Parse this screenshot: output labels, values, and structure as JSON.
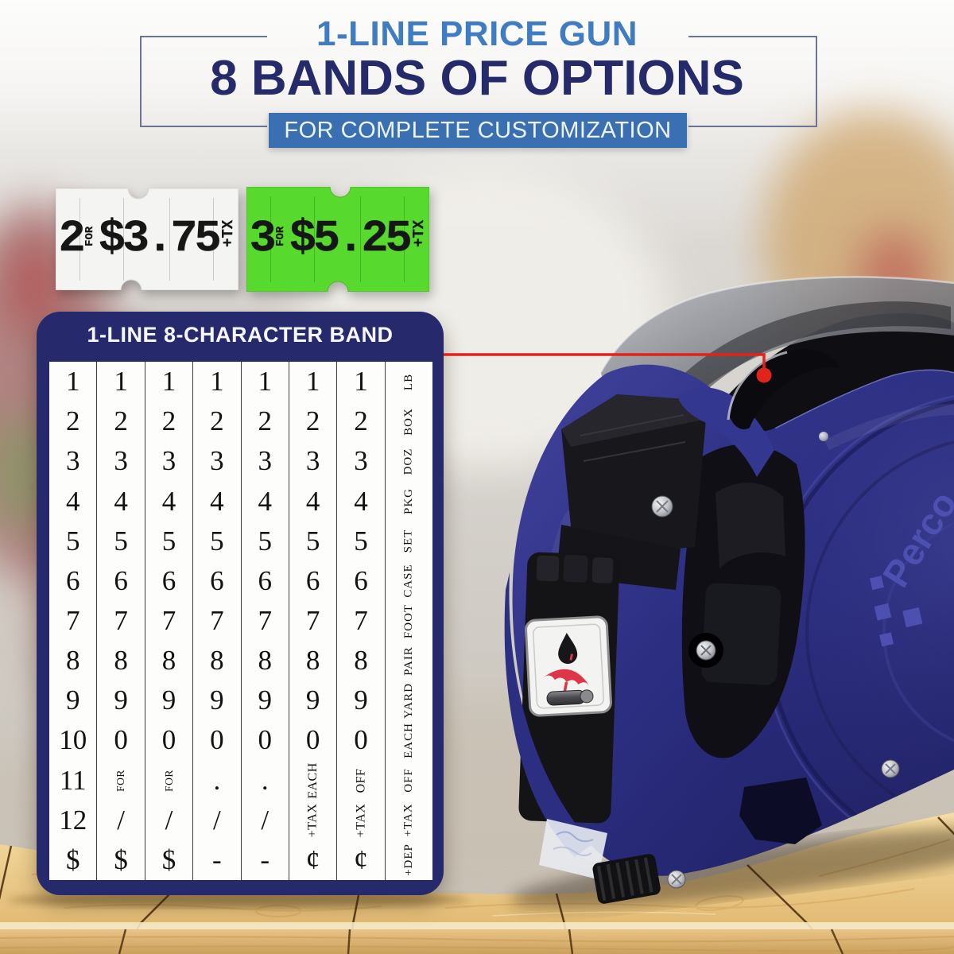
{
  "header": {
    "eyebrow": "1-LINE PRICE GUN",
    "title": "8 BANDS OF OPTIONS",
    "banner": "FOR COMPLETE CUSTOMIZATION"
  },
  "labels": [
    {
      "name": "white",
      "qty": "2",
      "for_text": "FOR",
      "price": "$3.75",
      "tax_text": "+TX",
      "bg": "#f4f4f2"
    },
    {
      "name": "green",
      "qty": "3",
      "for_text": "FOR",
      "price": "$5.25",
      "tax_text": "+TX",
      "bg": "#57da2d"
    }
  ],
  "band": {
    "title": "1-LINE 8-CHARACTER BAND",
    "columns": [
      {
        "cells": [
          "1",
          "2",
          "3",
          "4",
          "5",
          "6",
          "7",
          "8",
          "9",
          "10",
          "11",
          "12",
          "$"
        ],
        "rotated": []
      },
      {
        "cells": [
          "1",
          "2",
          "3",
          "4",
          "5",
          "6",
          "7",
          "8",
          "9",
          "0",
          "FOR",
          "/",
          "$"
        ],
        "rotated": [
          10
        ]
      },
      {
        "cells": [
          "1",
          "2",
          "3",
          "4",
          "5",
          "6",
          "7",
          "8",
          "9",
          "0",
          "FOR",
          "/",
          "$"
        ],
        "rotated": [
          10
        ]
      },
      {
        "cells": [
          "1",
          "2",
          "3",
          "4",
          "5",
          "6",
          "7",
          "8",
          "9",
          "0",
          ".",
          "/",
          "-"
        ],
        "rotated": []
      },
      {
        "cells": [
          "1",
          "2",
          "3",
          "4",
          "5",
          "6",
          "7",
          "8",
          "9",
          "0",
          ".",
          "/",
          "-"
        ],
        "rotated": []
      },
      {
        "cells": [
          "1",
          "2",
          "3",
          "4",
          "5",
          "6",
          "7",
          "8",
          "9",
          "0",
          "EACH",
          "+TAX",
          "¢"
        ],
        "rotated": [
          10,
          11
        ]
      },
      {
        "cells": [
          "1",
          "2",
          "3",
          "4",
          "5",
          "6",
          "7",
          "8",
          "9",
          "0",
          "OFF",
          "+TAX",
          "¢"
        ],
        "rotated": [
          10,
          11
        ]
      },
      {
        "cells": [
          "LB",
          "BOX",
          "DOZ",
          "PKG",
          "SET",
          "CASE",
          "FOOT",
          "PAIR",
          "YARD",
          "EACH",
          "OFF",
          "+TAX",
          "+DEP"
        ],
        "rotated": [
          0,
          1,
          2,
          3,
          4,
          5,
          6,
          7,
          8,
          9,
          10,
          11,
          12
        ]
      }
    ]
  },
  "gun": {
    "logo_text": "Perco"
  },
  "colors": {
    "accent_red": "#e2231a",
    "panel_navy": "#262a6c",
    "eyebrow_blue": "#3f7cc1",
    "title_navy": "#252a6a",
    "banner_blue": "#3a70b2",
    "label_green": "#57da2d",
    "gun_blue": "#2d2f85"
  }
}
